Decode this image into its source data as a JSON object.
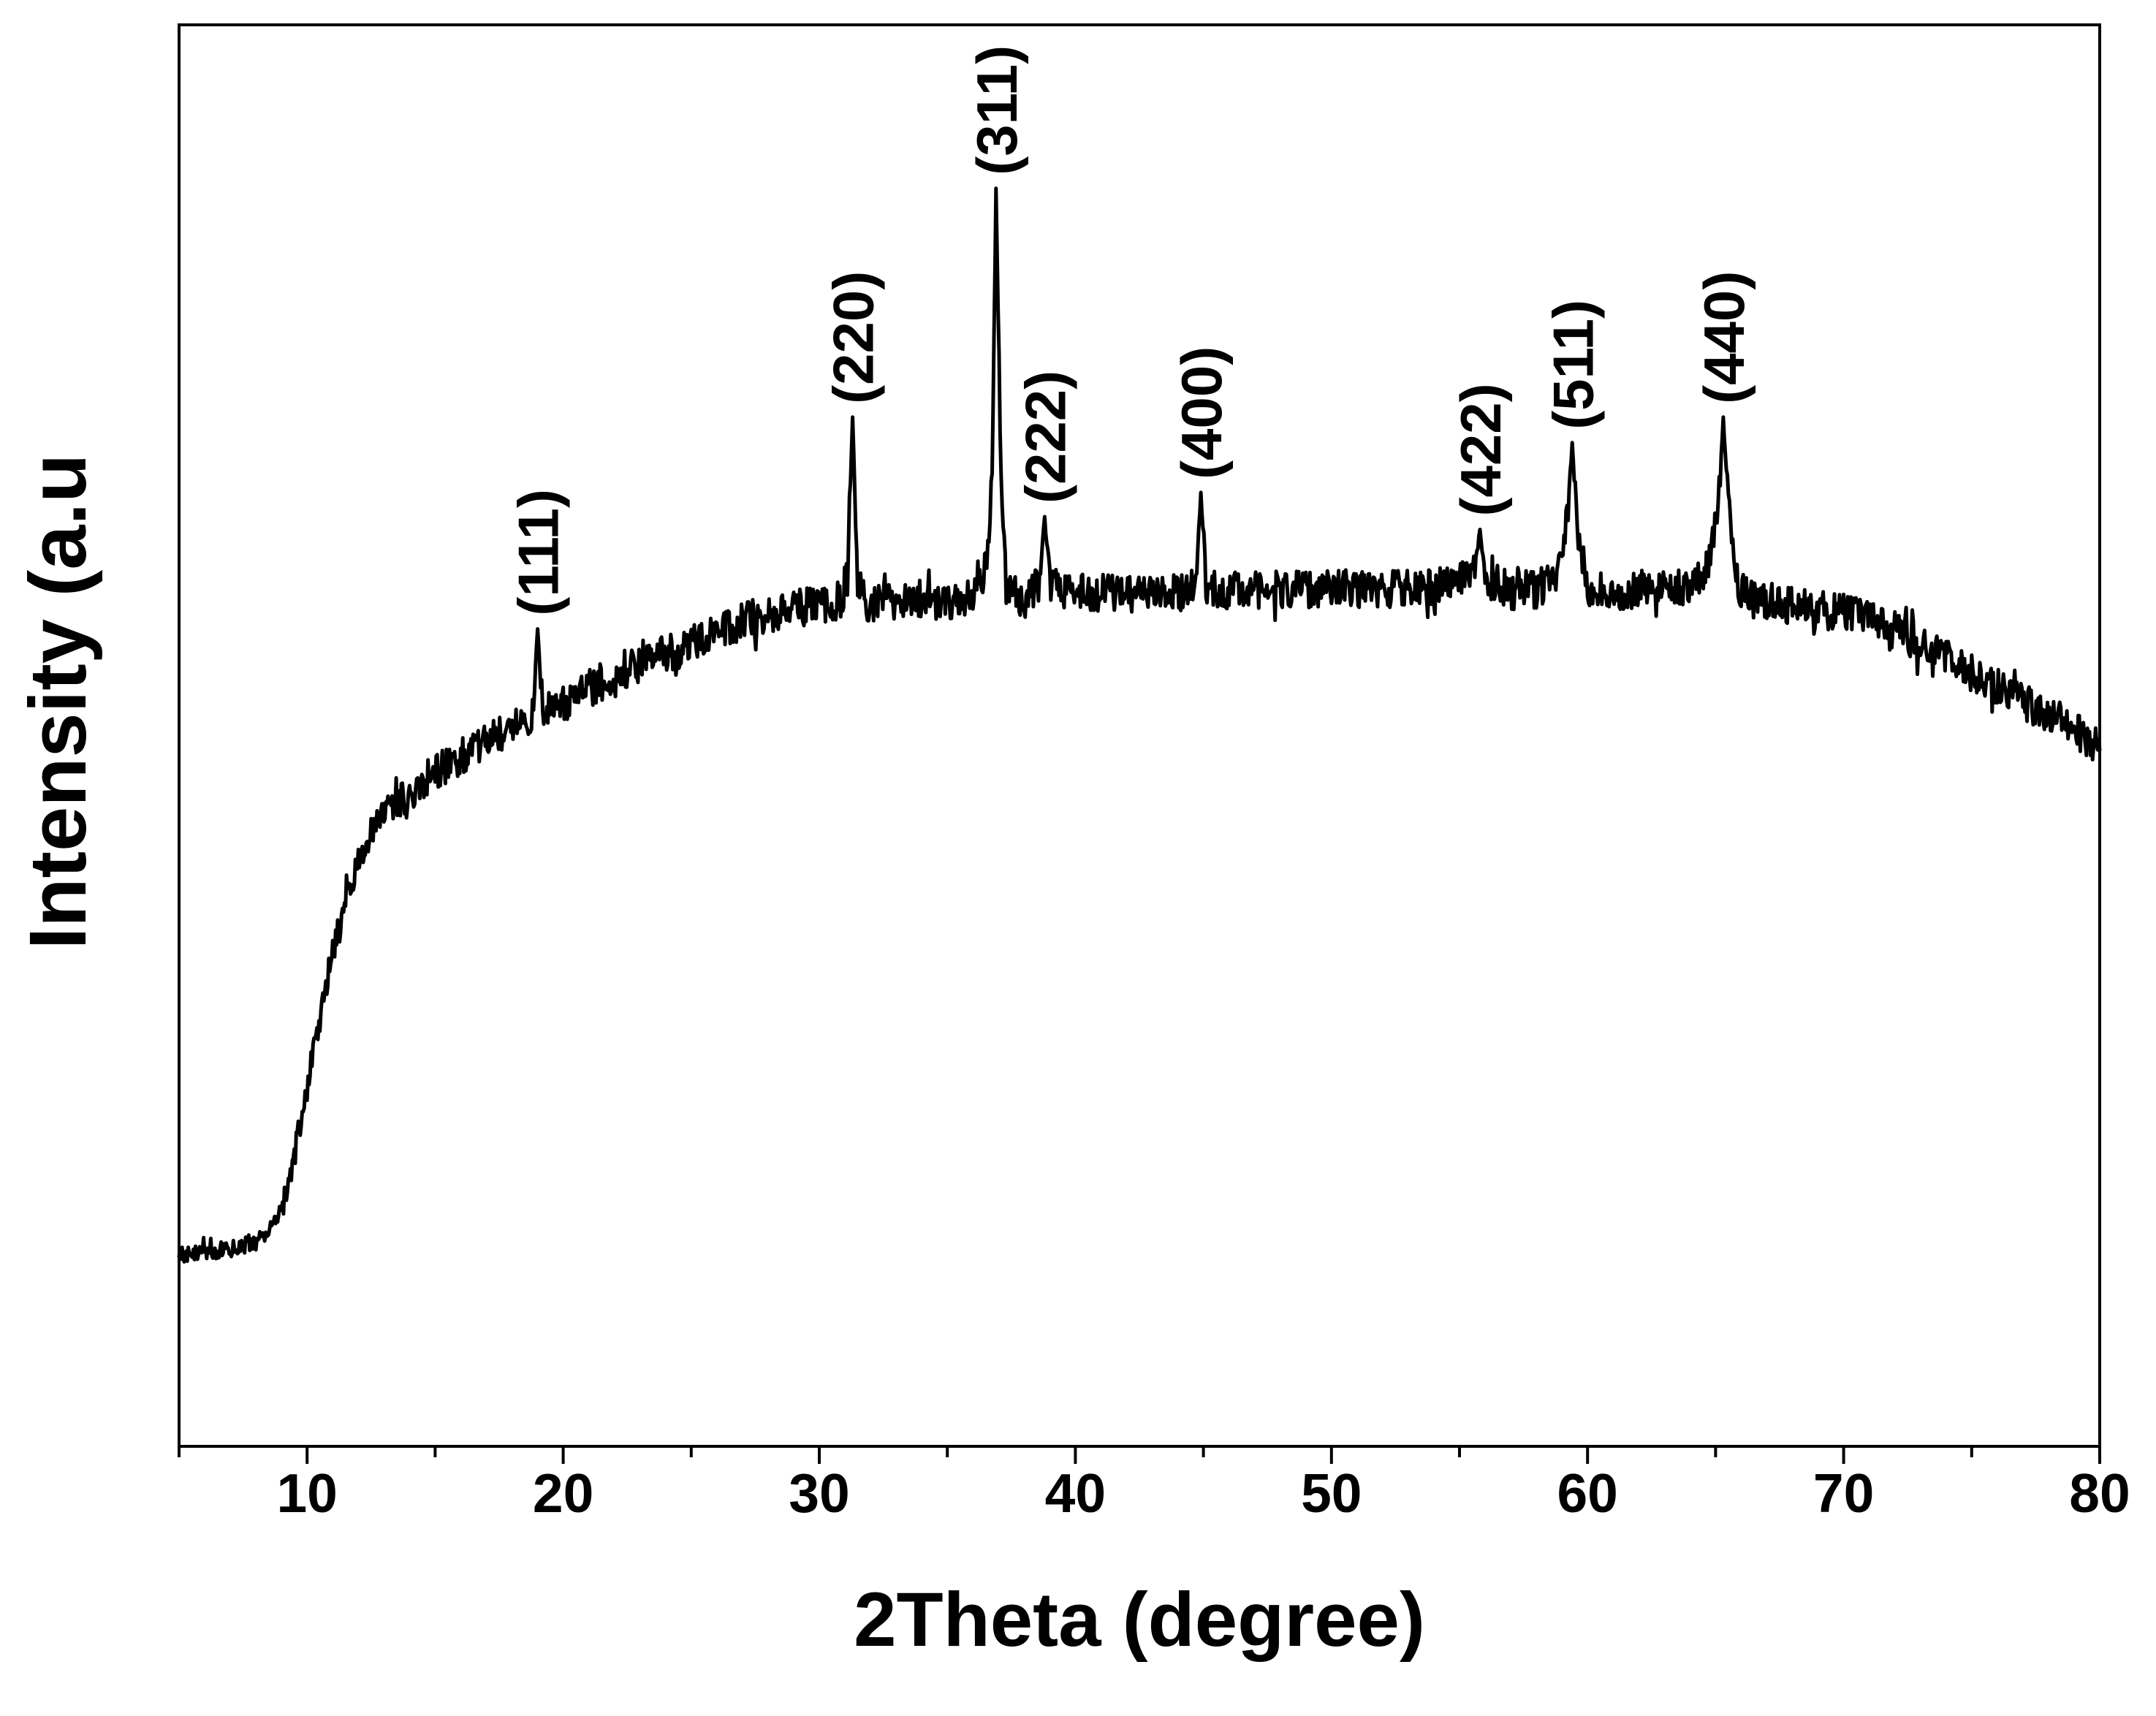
{
  "chart_data": {
    "type": "line",
    "xlabel": "2Theta (degree)",
    "ylabel": "Intensity (a.u",
    "xlim": [
      5,
      80
    ],
    "ylim": [
      0,
      100
    ],
    "xticks": [
      10,
      20,
      30,
      40,
      50,
      60,
      70,
      80
    ],
    "xminor_ticks": [
      5,
      15,
      25,
      35,
      45,
      55,
      65,
      75
    ],
    "yticks": [],
    "grid": false,
    "series": [
      {
        "color": "#000000",
        "x": [
          5.0,
          6.0,
          7.0,
          8.0,
          8.5,
          9.0,
          9.5,
          10.0,
          10.5,
          11.0,
          11.5,
          12.0,
          12.5,
          13.0,
          14.0,
          15.0,
          16.0,
          17.0,
          18.0,
          18.8,
          19.0,
          19.2,
          20.0,
          21.0,
          22.0,
          23.0,
          24.0,
          25.0,
          26.0,
          27.0,
          28.0,
          29.0,
          30.0,
          30.8,
          31.1,
          31.3,
          31.5,
          31.8,
          32.0,
          33.0,
          34.0,
          35.0,
          36.0,
          36.5,
          36.75,
          36.9,
          37.1,
          37.3,
          38.0,
          38.6,
          38.8,
          39.0,
          40.0,
          41.0,
          42.0,
          43.0,
          44.0,
          44.7,
          44.9,
          45.1,
          46.0,
          47.0,
          48.0,
          49.0,
          50.0,
          51.0,
          52.0,
          53.0,
          54.0,
          55.0,
          55.6,
          55.8,
          56.0,
          57.0,
          58.0,
          58.8,
          59.2,
          59.4,
          59.6,
          60.0,
          61.0,
          62.0,
          63.0,
          64.0,
          64.8,
          65.1,
          65.3,
          65.5,
          65.8,
          66.0,
          67.0,
          68.0,
          69.0,
          70.0,
          71.0,
          72.0,
          73.0,
          74.0,
          75.0,
          76.0,
          77.0,
          78.0,
          79.0,
          80.0
        ],
        "y": [
          13.5,
          13.7,
          13.9,
          14.4,
          15.1,
          16.6,
          20.5,
          25.3,
          30.2,
          34.8,
          38.3,
          41.2,
          43.2,
          44.7,
          46.1,
          47.5,
          48.5,
          49.4,
          50.6,
          51.4,
          57.5,
          51.6,
          52.4,
          53.3,
          54.2,
          55.0,
          55.7,
          56.5,
          57.3,
          58.0,
          58.6,
          59.0,
          59.2,
          59.5,
          61.1,
          72.4,
          61.1,
          59.4,
          59.2,
          59.5,
          59.6,
          59.5,
          60.0,
          61.6,
          67.9,
          88.5,
          67.9,
          60.6,
          59.5,
          60.6,
          65.4,
          60.6,
          60.0,
          60.0,
          60.0,
          59.8,
          60.0,
          60.6,
          67.1,
          60.6,
          60.1,
          60.3,
          60.3,
          60.2,
          60.3,
          60.3,
          60.3,
          60.4,
          60.4,
          60.7,
          61.6,
          64.5,
          61.1,
          60.2,
          60.3,
          61.3,
          65.0,
          70.6,
          64.5,
          60.2,
          60.1,
          60.3,
          60.2,
          60.5,
          62.3,
          66.0,
          72.4,
          66.0,
          61.1,
          60.3,
          59.4,
          59.1,
          58.8,
          58.6,
          58.1,
          57.4,
          56.5,
          55.5,
          54.4,
          53.5,
          52.5,
          51.5,
          50.4,
          49.0
        ]
      }
    ],
    "annotations": [
      {
        "label": "(111)",
        "x": 19.0
      },
      {
        "label": "(220)",
        "x": 31.3
      },
      {
        "label": "(311)",
        "x": 36.9
      },
      {
        "label": "(222)",
        "x": 38.8
      },
      {
        "label": "(400)",
        "x": 44.9
      },
      {
        "label": "(422)",
        "x": 55.8
      },
      {
        "label": "(511)",
        "x": 59.4
      },
      {
        "label": "(440)",
        "x": 65.3
      }
    ]
  }
}
